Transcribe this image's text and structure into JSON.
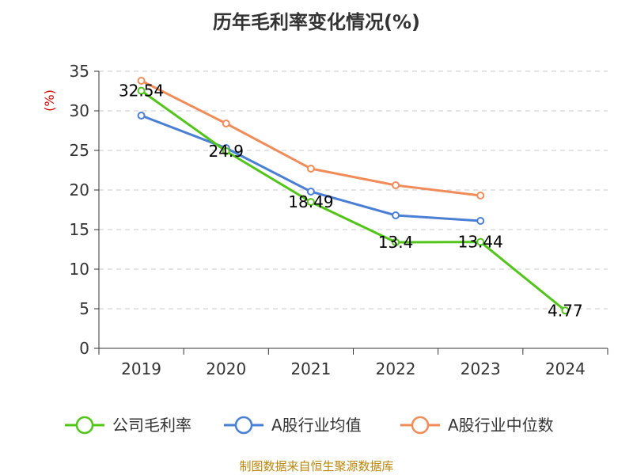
{
  "chart_data": {
    "type": "line",
    "title": "历年毛利率变化情况(%)",
    "ylabel": "(%)",
    "xlabel": "",
    "categories": [
      "2019",
      "2020",
      "2021",
      "2022",
      "2023",
      "2024"
    ],
    "ylim": [
      0,
      35
    ],
    "yticks": [
      0,
      5,
      10,
      15,
      20,
      25,
      30,
      35
    ],
    "grid": true,
    "legend_position": "bottom",
    "series": [
      {
        "name": "公司毛利率",
        "color": "#52c41a",
        "values": [
          32.54,
          24.9,
          18.49,
          13.4,
          13.44,
          4.77
        ],
        "labels": [
          "32.54",
          "24.9",
          "18.49",
          "13.4",
          "13.44",
          "4.77"
        ]
      },
      {
        "name": "A股行业均值",
        "color": "#4a7fd4",
        "values": [
          29.4,
          25.3,
          19.8,
          16.8,
          16.1,
          null
        ]
      },
      {
        "name": "A股行业中位数",
        "color": "#f08c5a",
        "values": [
          33.8,
          28.4,
          22.7,
          20.6,
          19.3,
          null
        ]
      }
    ]
  },
  "source": "制图数据来自恒生聚源数据库"
}
